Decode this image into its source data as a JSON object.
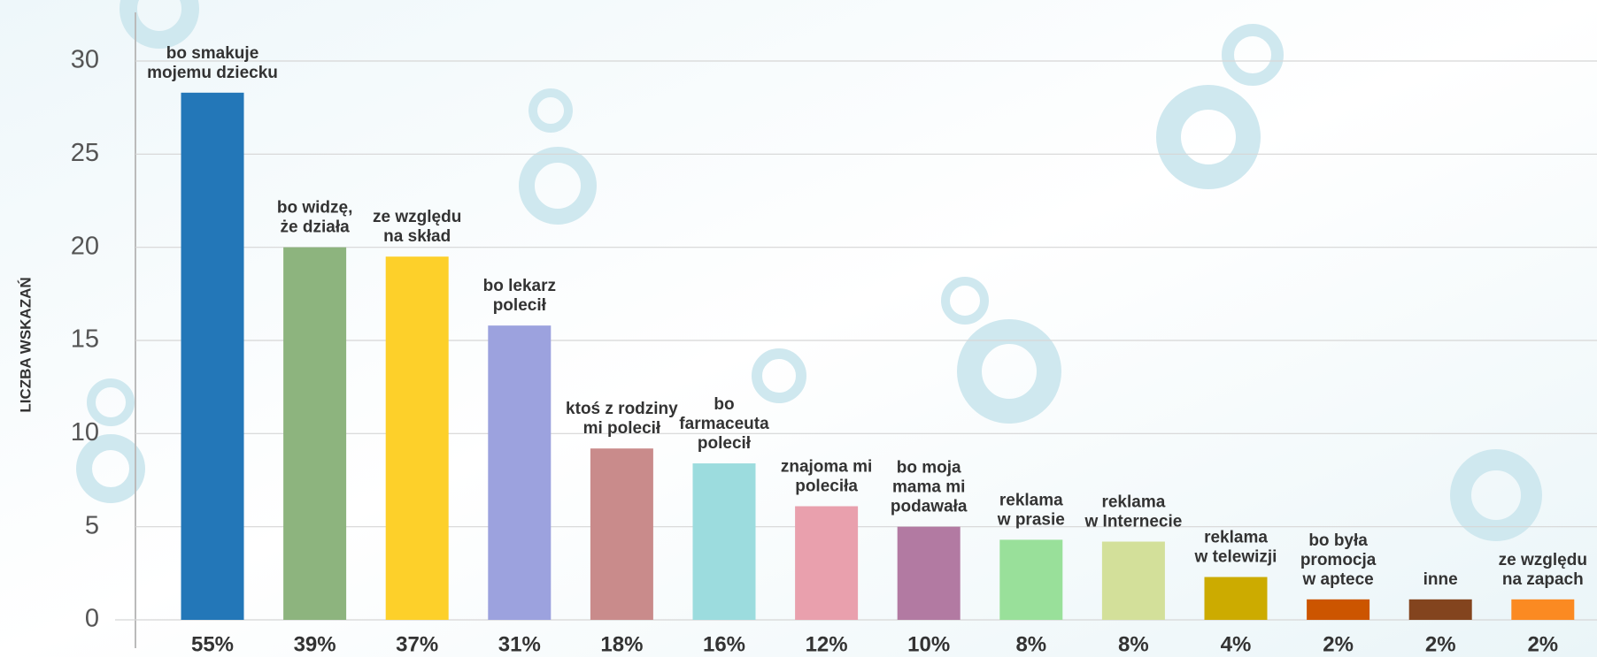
{
  "chart_data": {
    "type": "bar",
    "y_axis_label": "LICZBA WSKAZAŃ",
    "categories": [
      "55%",
      "39%",
      "37%",
      "31%",
      "18%",
      "16%",
      "12%",
      "10%",
      "8%",
      "8%",
      "4%",
      "2%",
      "2%",
      "2%"
    ],
    "bar_labels": [
      [
        "bo smakuje",
        "mojemu dziecku"
      ],
      [
        "bo widzę,",
        "że działa"
      ],
      [
        "ze względu",
        "na skład"
      ],
      [
        "bo lekarz",
        "polecił"
      ],
      [
        "ktoś z rodziny",
        "mi polecił"
      ],
      [
        "bo",
        "farmaceuta",
        "polecił"
      ],
      [
        "znajoma mi",
        "poleciła"
      ],
      [
        "bo moja",
        "mama mi",
        "podawała"
      ],
      [
        "reklama",
        "w prasie"
      ],
      [
        "reklama",
        "w Internecie"
      ],
      [
        "reklama",
        "w telewizji"
      ],
      [
        "bo była",
        "promocja",
        "w aptece"
      ],
      [
        "inne"
      ],
      [
        "ze względu",
        "na zapach"
      ]
    ],
    "values": [
      28.3,
      20,
      19.5,
      15.8,
      9.2,
      8.4,
      6.1,
      5.0,
      4.3,
      4.2,
      2.3,
      1.1,
      1.1,
      1.1
    ],
    "colors": [
      "#2377b8",
      "#8db47e",
      "#fdd02a",
      "#9ca2de",
      "#c98b8b",
      "#9cdcde",
      "#e9a0ad",
      "#b27aa2",
      "#99e09a",
      "#d3e09a",
      "#ccab00",
      "#cc5500",
      "#83441e",
      "#fb8a22"
    ],
    "ylim": [
      0,
      30
    ],
    "yticks": [
      0,
      5,
      10,
      15,
      20,
      25,
      30
    ],
    "grid": true
  }
}
